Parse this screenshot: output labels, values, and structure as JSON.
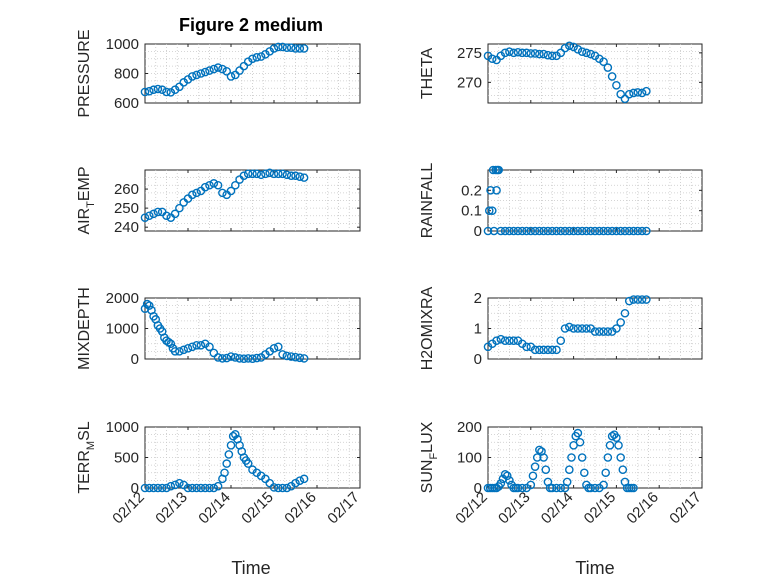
{
  "figure": {
    "title": "Figure 2 medium",
    "marker_color": "#0072BD",
    "xlabel": "Time"
  },
  "chart_data": [
    {
      "type": "scatter",
      "id": "pressure",
      "ylabel": "PRESSURE",
      "xlim": [
        0,
        5
      ],
      "ylim": [
        600,
        1000
      ],
      "yticks": [
        600,
        800,
        1000
      ],
      "yticklabels": [
        "600",
        "800",
        "1000"
      ],
      "xticks": [
        0,
        1,
        2,
        3,
        4,
        5
      ],
      "xticklabels": [],
      "x": [
        0.0,
        0.1,
        0.2,
        0.3,
        0.4,
        0.5,
        0.6,
        0.7,
        0.8,
        0.9,
        1.0,
        1.1,
        1.2,
        1.3,
        1.4,
        1.5,
        1.6,
        1.7,
        1.8,
        1.9,
        2.0,
        2.1,
        2.2,
        2.3,
        2.4,
        2.5,
        2.6,
        2.7,
        2.8,
        2.9,
        3.0,
        3.1,
        3.2,
        3.3,
        3.4,
        3.5,
        3.6,
        3.7
      ],
      "y": [
        675,
        680,
        690,
        695,
        690,
        675,
        672,
        690,
        710,
        740,
        760,
        780,
        790,
        800,
        810,
        820,
        830,
        840,
        830,
        815,
        780,
        790,
        820,
        850,
        880,
        900,
        910,
        915,
        930,
        950,
        970,
        980,
        980,
        975,
        975,
        970,
        970,
        970
      ]
    },
    {
      "type": "scatter",
      "id": "theta",
      "ylabel": "THETA",
      "xlim": [
        0,
        5
      ],
      "ylim": [
        266.5,
        276.5
      ],
      "yticks": [
        270,
        275
      ],
      "yticklabels": [
        "270",
        "275"
      ],
      "xticks": [
        0,
        1,
        2,
        3,
        4,
        5
      ],
      "xticklabels": [],
      "x": [
        0.0,
        0.1,
        0.2,
        0.3,
        0.4,
        0.5,
        0.6,
        0.7,
        0.8,
        0.9,
        1.0,
        1.1,
        1.2,
        1.3,
        1.4,
        1.5,
        1.6,
        1.7,
        1.8,
        1.9,
        2.0,
        2.1,
        2.2,
        2.3,
        2.4,
        2.5,
        2.6,
        2.7,
        2.8,
        2.9,
        3.0,
        3.1,
        3.2,
        3.3,
        3.4,
        3.5,
        3.6,
        3.7
      ],
      "y": [
        274.5,
        274.0,
        273.8,
        274.5,
        275.0,
        275.2,
        275.0,
        275.1,
        275.0,
        275.0,
        274.9,
        274.9,
        274.8,
        274.8,
        274.6,
        274.5,
        274.5,
        275.0,
        275.8,
        276.2,
        276.0,
        275.6,
        275.2,
        275.0,
        274.8,
        274.5,
        274.0,
        273.5,
        272.5,
        271.0,
        269.5,
        268.0,
        267.2,
        268.0,
        268.2,
        268.3,
        268.2,
        268.5
      ]
    },
    {
      "type": "scatter",
      "id": "air_temp",
      "ylabel": "AIR",
      "ylabel_sub": "T",
      "ylabel_rest": "EMP",
      "xlim": [
        0,
        5
      ],
      "ylim": [
        238,
        270
      ],
      "yticks": [
        240,
        250,
        260
      ],
      "yticklabels": [
        "240",
        "250",
        "260"
      ],
      "xticks": [
        0,
        1,
        2,
        3,
        4,
        5
      ],
      "xticklabels": [],
      "x": [
        0.0,
        0.1,
        0.2,
        0.3,
        0.4,
        0.5,
        0.6,
        0.7,
        0.8,
        0.9,
        1.0,
        1.1,
        1.2,
        1.3,
        1.4,
        1.5,
        1.6,
        1.7,
        1.8,
        1.9,
        2.0,
        2.1,
        2.2,
        2.3,
        2.4,
        2.5,
        2.6,
        2.7,
        2.8,
        2.9,
        3.0,
        3.1,
        3.2,
        3.3,
        3.4,
        3.5,
        3.6,
        3.7
      ],
      "y": [
        245,
        246,
        247,
        248,
        248,
        246,
        245,
        247,
        250,
        253,
        255,
        257,
        258,
        259,
        261,
        262,
        263,
        262,
        258,
        257,
        259,
        262,
        265,
        267,
        268,
        268,
        268,
        267.5,
        268,
        268.5,
        268,
        268,
        268,
        267.5,
        267,
        267,
        266.5,
        266
      ]
    },
    {
      "type": "scatter",
      "id": "rainfall",
      "ylabel": "RAINFALL",
      "xlim": [
        0,
        5
      ],
      "ylim": [
        0,
        0.3
      ],
      "yticks": [
        0,
        0.1,
        0.2
      ],
      "yticklabels": [
        "0",
        "0.1",
        "0.2"
      ],
      "xticks": [
        0,
        1,
        2,
        3,
        4,
        5
      ],
      "xticklabels": [],
      "x": [
        0.0,
        0.03,
        0.06,
        0.1,
        0.12,
        0.14,
        0.18,
        0.2,
        0.22,
        0.25,
        0.3,
        0.4,
        0.5,
        0.6,
        0.7,
        0.8,
        0.9,
        1.0,
        1.1,
        1.2,
        1.3,
        1.4,
        1.5,
        1.6,
        1.7,
        1.8,
        1.9,
        2.0,
        2.1,
        2.2,
        2.3,
        2.4,
        2.5,
        2.6,
        2.7,
        2.8,
        2.9,
        3.0,
        3.1,
        3.2,
        3.3,
        3.4,
        3.5,
        3.6,
        3.7
      ],
      "y": [
        0,
        0.1,
        0.2,
        0.1,
        0.3,
        0,
        0.3,
        0.2,
        0.3,
        0.3,
        0,
        0,
        0,
        0,
        0,
        0,
        0,
        0,
        0,
        0,
        0,
        0,
        0,
        0,
        0,
        0,
        0,
        0,
        0,
        0,
        0,
        0,
        0,
        0,
        0,
        0,
        0,
        0,
        0,
        0,
        0,
        0,
        0,
        0,
        0
      ]
    },
    {
      "type": "scatter",
      "id": "mixdepth",
      "ylabel": "MIXDEPTH",
      "xlim": [
        0,
        5
      ],
      "ylim": [
        0,
        2000
      ],
      "yticks": [
        0,
        1000,
        2000
      ],
      "yticklabels": [
        "0",
        "1000",
        "2000"
      ],
      "xticks": [
        0,
        1,
        2,
        3,
        4,
        5
      ],
      "xticklabels": [],
      "x": [
        0.0,
        0.05,
        0.1,
        0.15,
        0.2,
        0.25,
        0.3,
        0.35,
        0.4,
        0.45,
        0.5,
        0.55,
        0.6,
        0.65,
        0.7,
        0.8,
        0.9,
        1.0,
        1.1,
        1.2,
        1.3,
        1.4,
        1.5,
        1.6,
        1.7,
        1.8,
        1.9,
        2.0,
        2.1,
        2.2,
        2.3,
        2.4,
        2.5,
        2.6,
        2.7,
        2.8,
        2.9,
        3.0,
        3.1,
        3.2,
        3.3,
        3.4,
        3.5,
        3.6,
        3.7
      ],
      "y": [
        1650,
        1800,
        1750,
        1600,
        1400,
        1300,
        1100,
        1000,
        900,
        700,
        600,
        550,
        500,
        350,
        250,
        250,
        300,
        350,
        400,
        450,
        450,
        500,
        400,
        200,
        50,
        20,
        30,
        80,
        50,
        20,
        10,
        20,
        10,
        30,
        50,
        150,
        250,
        350,
        400,
        150,
        100,
        80,
        60,
        40,
        20
      ]
    },
    {
      "type": "scatter",
      "id": "h2omixra",
      "ylabel": "H2OMIXRA",
      "xlim": [
        0,
        5
      ],
      "ylim": [
        0,
        2
      ],
      "yticks": [
        0,
        1,
        2
      ],
      "yticklabels": [
        "0",
        "1",
        "2"
      ],
      "xticks": [
        0,
        1,
        2,
        3,
        4,
        5
      ],
      "xticklabels": [],
      "x": [
        0.0,
        0.1,
        0.2,
        0.3,
        0.4,
        0.5,
        0.6,
        0.7,
        0.8,
        0.9,
        1.0,
        1.1,
        1.2,
        1.3,
        1.4,
        1.5,
        1.6,
        1.7,
        1.8,
        1.9,
        2.0,
        2.1,
        2.2,
        2.3,
        2.4,
        2.5,
        2.6,
        2.7,
        2.8,
        2.9,
        3.0,
        3.1,
        3.2,
        3.3,
        3.4,
        3.5,
        3.6,
        3.7
      ],
      "y": [
        0.4,
        0.5,
        0.6,
        0.65,
        0.6,
        0.6,
        0.6,
        0.6,
        0.5,
        0.4,
        0.4,
        0.3,
        0.3,
        0.3,
        0.3,
        0.3,
        0.3,
        0.6,
        1.0,
        1.05,
        1.0,
        1.0,
        1.0,
        1.0,
        1.0,
        0.9,
        0.9,
        0.9,
        0.9,
        0.9,
        1.0,
        1.2,
        1.5,
        1.9,
        1.95,
        1.95,
        1.95,
        1.95
      ]
    },
    {
      "type": "scatter",
      "id": "terr_msl",
      "ylabel": "TERR",
      "ylabel_sub": "M",
      "ylabel_rest": "SL",
      "xlim": [
        0,
        5
      ],
      "ylim": [
        0,
        1000
      ],
      "yticks": [
        0,
        500,
        1000
      ],
      "yticklabels": [
        "0",
        "500",
        "1000"
      ],
      "xticks": [
        0,
        1,
        2,
        3,
        4,
        5
      ],
      "xticklabels": [
        "02/12",
        "02/13",
        "02/14",
        "02/15",
        "02/16",
        "02/17"
      ],
      "x": [
        0.0,
        0.1,
        0.2,
        0.3,
        0.4,
        0.5,
        0.6,
        0.7,
        0.8,
        0.9,
        1.0,
        1.1,
        1.2,
        1.3,
        1.4,
        1.5,
        1.6,
        1.7,
        1.8,
        1.85,
        1.9,
        1.95,
        2.0,
        2.05,
        2.1,
        2.15,
        2.2,
        2.25,
        2.3,
        2.35,
        2.4,
        2.5,
        2.6,
        2.7,
        2.8,
        2.9,
        3.0,
        3.1,
        3.2,
        3.3,
        3.4,
        3.5,
        3.6,
        3.7
      ],
      "y": [
        0,
        0,
        0,
        0,
        0,
        0,
        30,
        50,
        80,
        50,
        0,
        0,
        0,
        0,
        0,
        0,
        0,
        30,
        150,
        250,
        400,
        550,
        700,
        850,
        880,
        800,
        700,
        600,
        500,
        450,
        400,
        300,
        250,
        200,
        150,
        80,
        10,
        0,
        0,
        0,
        30,
        80,
        120,
        150
      ]
    },
    {
      "type": "scatter",
      "id": "sunflux",
      "ylabel": "SUN",
      "ylabel_sub": "F",
      "ylabel_rest": "LUX",
      "xlim": [
        0,
        5
      ],
      "ylim": [
        0,
        200
      ],
      "yticks": [
        0,
        100,
        200
      ],
      "yticklabels": [
        "0",
        "100",
        "200"
      ],
      "xticks": [
        0,
        1,
        2,
        3,
        4,
        5
      ],
      "xticklabels": [
        "02/12",
        "02/13",
        "02/14",
        "02/15",
        "02/16",
        "02/17"
      ],
      "x": [
        0.0,
        0.05,
        0.1,
        0.15,
        0.2,
        0.25,
        0.3,
        0.35,
        0.4,
        0.45,
        0.5,
        0.55,
        0.6,
        0.65,
        0.7,
        0.8,
        0.9,
        1.0,
        1.05,
        1.1,
        1.15,
        1.2,
        1.25,
        1.3,
        1.35,
        1.4,
        1.45,
        1.5,
        1.6,
        1.7,
        1.8,
        1.85,
        1.9,
        1.95,
        2.0,
        2.05,
        2.1,
        2.15,
        2.2,
        2.25,
        2.3,
        2.35,
        2.4,
        2.5,
        2.6,
        2.7,
        2.75,
        2.8,
        2.85,
        2.9,
        2.95,
        3.0,
        3.05,
        3.1,
        3.15,
        3.2,
        3.25,
        3.3,
        3.35,
        3.4
      ],
      "y": [
        0,
        0,
        0,
        0,
        0,
        5,
        15,
        30,
        45,
        40,
        25,
        10,
        0,
        0,
        0,
        0,
        0,
        10,
        40,
        70,
        100,
        125,
        120,
        100,
        60,
        20,
        0,
        0,
        0,
        0,
        0,
        20,
        60,
        100,
        140,
        170,
        180,
        150,
        100,
        50,
        10,
        0,
        0,
        0,
        0,
        10,
        50,
        100,
        140,
        170,
        175,
        165,
        140,
        100,
        60,
        20,
        0,
        0,
        0,
        0
      ]
    }
  ]
}
